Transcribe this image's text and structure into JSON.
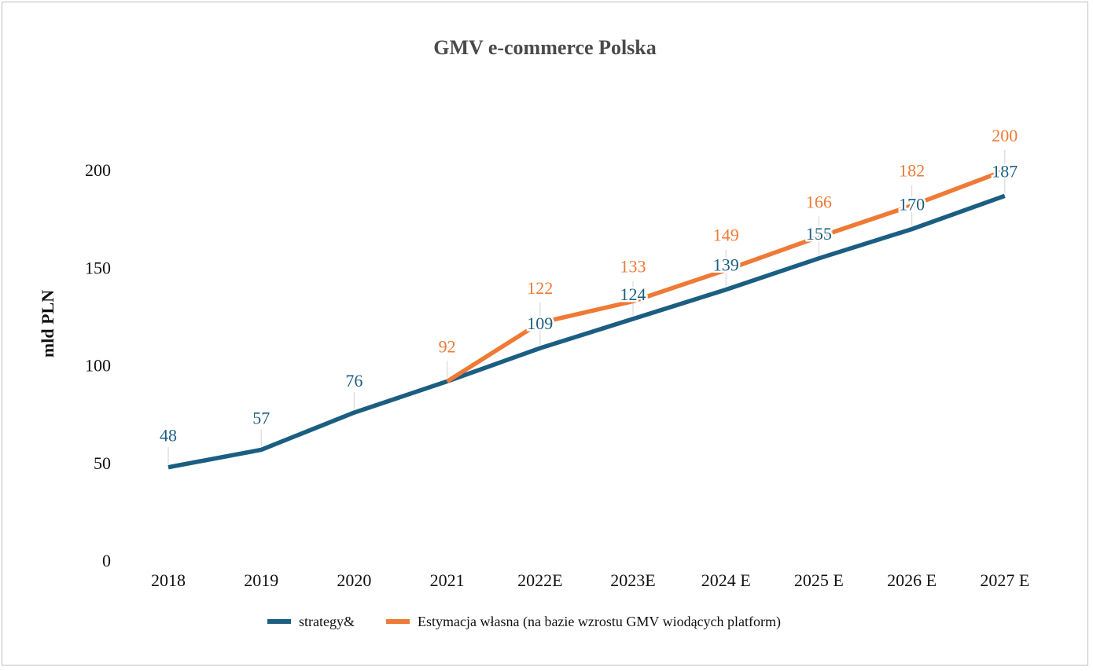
{
  "chart_data": {
    "type": "line",
    "title": "GMV e-commerce Polska",
    "xlabel": "",
    "ylabel": "mld PLN",
    "categories": [
      "2018",
      "2019",
      "2020",
      "2021",
      "2022E",
      "2023E",
      "2024 E",
      "2025 E",
      "2026 E",
      "2027 E"
    ],
    "ylim": [
      0,
      200
    ],
    "yticks": [
      "0",
      "50",
      "100",
      "150",
      "200"
    ],
    "grid": false,
    "legend_position": "bottom",
    "series": [
      {
        "name": "strategy&",
        "color": "#1b5e82",
        "values": [
          48,
          57,
          76,
          92,
          109,
          124,
          139,
          155,
          170,
          187
        ]
      },
      {
        "name": "Estymacja własna (na bazie wzrostu GMV wiodących platform)",
        "color": "#ee7a35",
        "values": [
          null,
          null,
          null,
          92,
          122,
          133,
          149,
          166,
          182,
          200
        ]
      }
    ],
    "data_labels": [
      {
        "series": 0,
        "values": [
          "48",
          "57",
          "76",
          "",
          "109",
          "124",
          "139",
          "155",
          "170",
          "187"
        ]
      },
      {
        "series": 1,
        "values": [
          "",
          "",
          "",
          "92",
          "122",
          "133",
          "149",
          "166",
          "182",
          "200"
        ]
      }
    ]
  }
}
